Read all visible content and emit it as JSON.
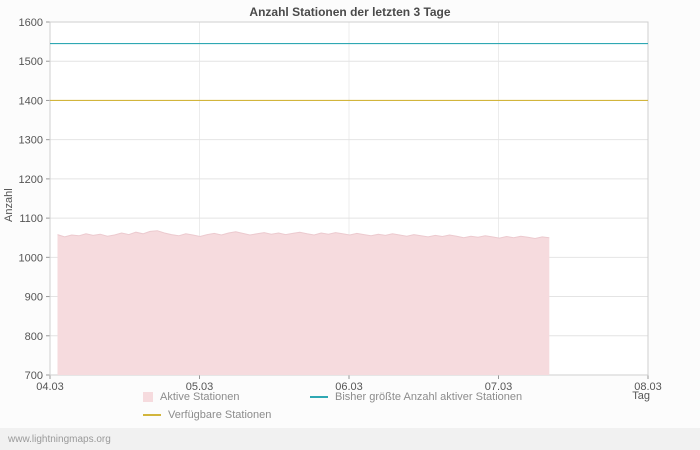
{
  "footer": {
    "link": "www.lightningmaps.org"
  },
  "chart_data": {
    "type": "area",
    "title": "Anzahl Stationen der letzten 3 Tage",
    "xlabel": "Tag",
    "ylabel": "Anzahl",
    "ylim": [
      700,
      1600
    ],
    "y_ticks": [
      700,
      800,
      900,
      1000,
      1100,
      1200,
      1300,
      1400,
      1500,
      1600
    ],
    "x_ticks": [
      "04.03",
      "05.03",
      "06.03",
      "07.03",
      "08.03"
    ],
    "x_range_days": [
      0,
      4
    ],
    "grid": true,
    "legend_position": "bottom",
    "series": [
      {
        "name": "Aktive Stationen",
        "type": "area",
        "fill_color": "#f6dbde",
        "stroke_color": "#eccacf",
        "x_start_day": 0.05,
        "x_end_day": 3.34,
        "values": [
          1058,
          1052,
          1057,
          1055,
          1060,
          1056,
          1059,
          1054,
          1057,
          1062,
          1058,
          1064,
          1060,
          1066,
          1068,
          1062,
          1058,
          1055,
          1060,
          1057,
          1053,
          1058,
          1061,
          1057,
          1062,
          1065,
          1061,
          1057,
          1060,
          1063,
          1059,
          1062,
          1058,
          1061,
          1064,
          1060,
          1057,
          1062,
          1059,
          1063,
          1060,
          1057,
          1061,
          1058,
          1055,
          1059,
          1056,
          1060,
          1057,
          1054,
          1058,
          1055,
          1052,
          1056,
          1053,
          1057,
          1054,
          1050,
          1054,
          1051,
          1055,
          1052,
          1049,
          1053,
          1050,
          1054,
          1051,
          1048,
          1052,
          1050
        ]
      },
      {
        "name": "Bisher größte Anzahl aktiver Stationen",
        "type": "hline",
        "color": "#2fa8b3",
        "value": 1545
      },
      {
        "name": "Verfügbare Stationen",
        "type": "hline",
        "color": "#d2b53c",
        "value": 1400
      }
    ]
  }
}
